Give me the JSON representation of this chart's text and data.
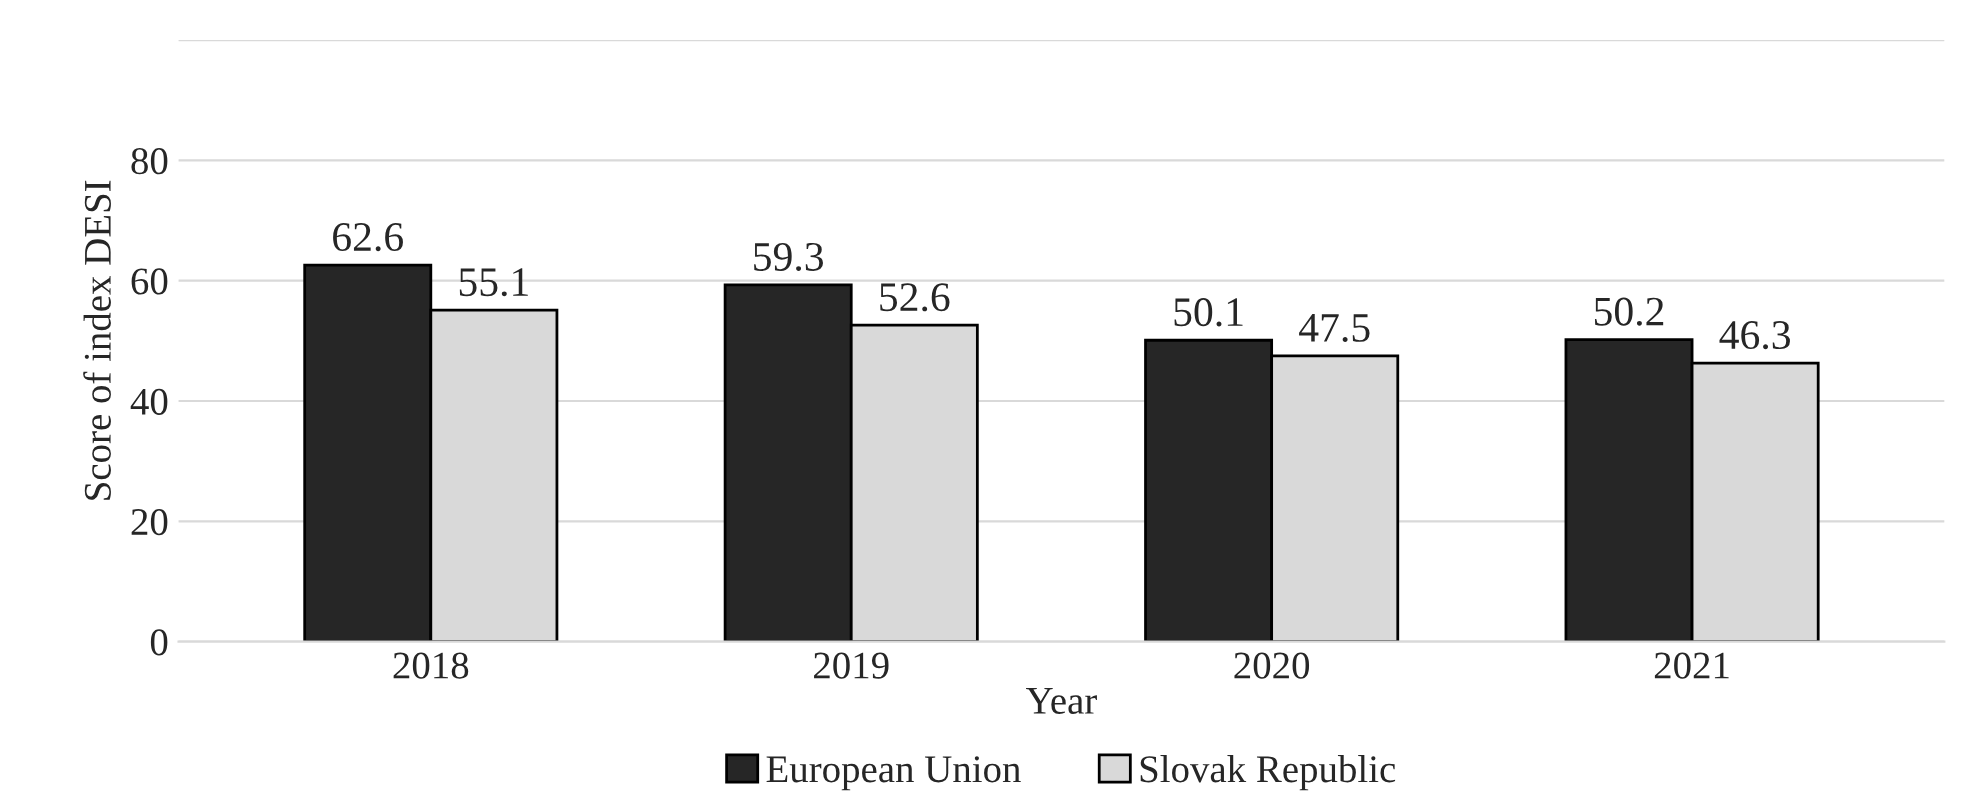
{
  "chart_data": {
    "type": "bar",
    "xlabel": "Year",
    "ylabel": "Score of index DESI",
    "categories": [
      "2018",
      "2019",
      "2020",
      "2021"
    ],
    "series": [
      {
        "name": "European Union",
        "color": "#262626",
        "values": [
          62.6,
          59.3,
          50.1,
          50.2
        ]
      },
      {
        "name": "Slovak Republic",
        "color": "#d9d9d9",
        "values": [
          55.1,
          52.6,
          47.5,
          46.3
        ]
      }
    ],
    "ylim": [
      0,
      100
    ],
    "yticks": [
      0,
      20,
      40,
      60,
      80,
      {
        "value": 100,
        "label": null
      }
    ],
    "grid": "y",
    "legend": "bottom",
    "data_labels": true
  }
}
